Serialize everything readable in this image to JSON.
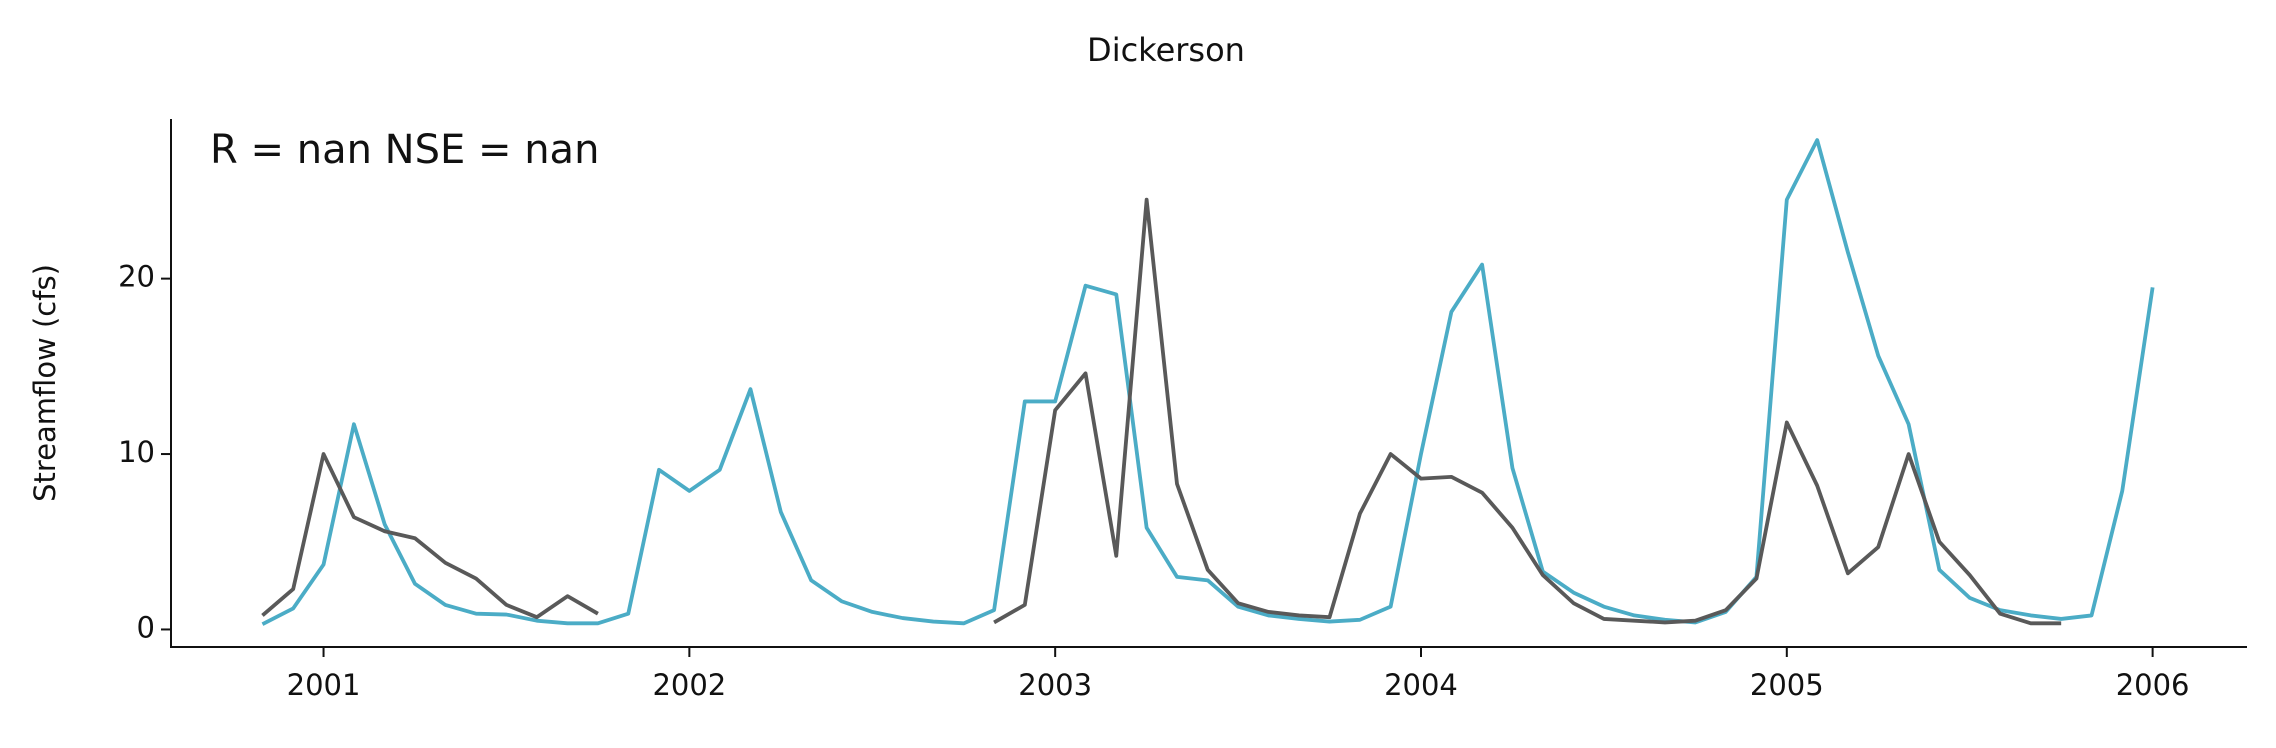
{
  "chart_data": {
    "type": "line",
    "title": "Dickerson",
    "ylabel": "Streamflow (cfs)",
    "annotation": "R = nan  NSE = nan",
    "x": [
      2000.833,
      2000.917,
      2001.0,
      2001.083,
      2001.167,
      2001.25,
      2001.333,
      2001.417,
      2001.5,
      2001.583,
      2001.667,
      2001.75,
      2001.833,
      2001.917,
      2002.0,
      2002.083,
      2002.167,
      2002.25,
      2002.333,
      2002.417,
      2002.5,
      2002.583,
      2002.667,
      2002.75,
      2002.833,
      2002.917,
      2003.0,
      2003.083,
      2003.167,
      2003.25,
      2003.333,
      2003.417,
      2003.5,
      2003.583,
      2003.667,
      2003.75,
      2003.833,
      2003.917,
      2004.0,
      2004.083,
      2004.167,
      2004.25,
      2004.333,
      2004.417,
      2004.5,
      2004.583,
      2004.667,
      2004.75,
      2004.833,
      2004.917,
      2005.0,
      2005.083,
      2005.167,
      2005.25,
      2005.333,
      2005.417,
      2005.5,
      2005.583,
      2005.667,
      2005.75,
      2005.833,
      2005.917,
      2006.0
    ],
    "series": [
      {
        "color": "#4bacc6",
        "values": [
          0.3,
          1.2,
          3.7,
          11.7,
          6,
          2.6,
          1.4,
          0.9,
          0.85,
          0.5,
          0.35,
          0.35,
          0.9,
          9.1,
          7.9,
          9.1,
          13.7,
          6.7,
          2.8,
          1.6,
          1.0,
          0.65,
          0.45,
          0.35,
          1.1,
          13,
          13,
          19.6,
          19.1,
          5.8,
          3,
          2.8,
          1.3,
          0.8,
          0.6,
          0.45,
          0.55,
          1.3,
          10,
          18.1,
          20.8,
          9.2,
          3.3,
          2.1,
          1.3,
          0.8,
          0.55,
          0.4,
          1.0,
          3.0,
          24.5,
          27.9,
          21.5,
          15.6,
          11.7,
          3.4,
          1.8,
          1.1,
          0.8,
          0.6,
          0.8,
          7.9,
          19.5
        ]
      },
      {
        "color": "#595959",
        "values": [
          0.8,
          2.3,
          10,
          6.4,
          5.6,
          5.2,
          3.8,
          2.9,
          1.4,
          0.7,
          1.9,
          0.9,
          null,
          null,
          null,
          null,
          null,
          null,
          null,
          null,
          null,
          null,
          null,
          null,
          0.4,
          1.4,
          12.5,
          14.6,
          4.2,
          24.5,
          8.3,
          3.4,
          1.5,
          1.0,
          0.8,
          0.7,
          6.6,
          10,
          8.6,
          8.7,
          7.8,
          5.8,
          3.1,
          1.5,
          0.6,
          0.5,
          0.4,
          0.5,
          1.1,
          2.9,
          11.8,
          8.2,
          3.2,
          4.7,
          10,
          5.0,
          3.1,
          0.9,
          0.35,
          0.35,
          null,
          null,
          null
        ]
      }
    ],
    "xlim": [
      2000.583,
      2006.258
    ],
    "xticks": [
      2001,
      2002,
      2003,
      2004,
      2005,
      2006
    ],
    "ylim": [
      -1,
      29.1
    ],
    "yticks": [
      0,
      10,
      20
    ],
    "grid": false
  }
}
